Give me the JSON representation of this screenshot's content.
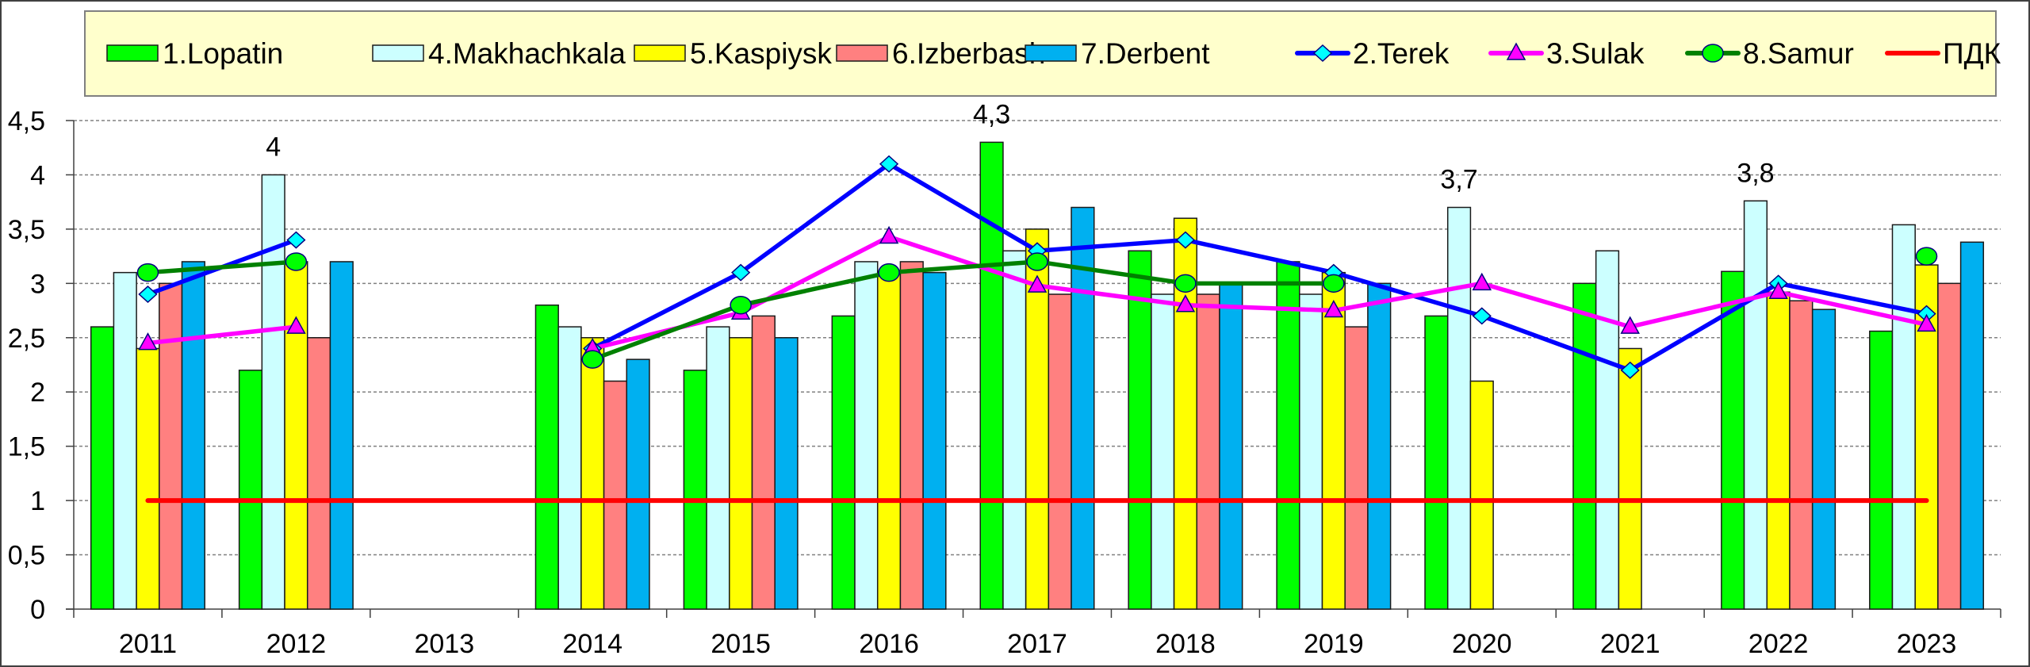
{
  "chart_data": {
    "type": "bar",
    "title": "",
    "xlabel": "",
    "ylabel": "",
    "ylim": [
      0,
      4.5
    ],
    "ytick_step": 0.5,
    "ytick_labels": [
      "0",
      "0,5",
      "1",
      "1,5",
      "2",
      "2,5",
      "3",
      "3,5",
      "4",
      "4,5"
    ],
    "grid": "horizontal-dashed",
    "legend_position": "top",
    "categories": [
      "2011",
      "2012",
      "2013",
      "2014",
      "2015",
      "2016",
      "2017",
      "2018",
      "2019",
      "2020",
      "2021",
      "2022",
      "2023"
    ],
    "bar_series": [
      {
        "name": "1.Lopatin",
        "color": "#00ff00",
        "values": [
          2.6,
          2.2,
          null,
          2.8,
          2.2,
          2.7,
          4.3,
          3.3,
          3.2,
          2.7,
          3.0,
          3.11,
          2.56
        ]
      },
      {
        "name": "4.Makhachkala",
        "color": "#ccffff",
        "values": [
          3.1,
          4.0,
          null,
          2.6,
          2.6,
          3.2,
          3.3,
          2.9,
          2.9,
          3.7,
          3.3,
          3.76,
          3.54
        ]
      },
      {
        "name": "5.Kaspiysk",
        "color": "#ffff00",
        "values": [
          2.4,
          3.2,
          null,
          2.5,
          2.5,
          3.1,
          3.5,
          3.6,
          3.1,
          2.1,
          2.4,
          2.92,
          3.17
        ]
      },
      {
        "name": "6.Izberbash",
        "color": "#ff8080",
        "values": [
          3.0,
          2.5,
          null,
          2.1,
          2.7,
          3.2,
          2.9,
          2.9,
          2.6,
          null,
          null,
          2.84,
          3.0
        ]
      },
      {
        "name": "7.Derbent",
        "color": "#00b0f0",
        "values": [
          3.2,
          3.2,
          null,
          2.3,
          2.5,
          3.1,
          3.7,
          3.0,
          3.0,
          null,
          null,
          2.76,
          3.38
        ]
      }
    ],
    "line_series": [
      {
        "name": "2.Terek",
        "color": "#0000ff",
        "marker": "diamond",
        "marker_color": "#00ffff",
        "values": [
          2.9,
          3.4,
          null,
          2.4,
          3.1,
          4.1,
          3.3,
          3.4,
          3.1,
          2.7,
          2.2,
          3.0,
          2.72
        ]
      },
      {
        "name": "3.Sulak",
        "color": "#ff00ff",
        "marker": "triangle",
        "marker_color": "#ff00ff",
        "values": [
          2.45,
          2.6,
          null,
          2.4,
          2.73,
          3.43,
          2.98,
          2.8,
          2.75,
          3.0,
          2.6,
          2.92,
          2.62
        ]
      },
      {
        "name": "8.Samur",
        "color": "#008000",
        "marker": "circle",
        "marker_color": "#00ff00",
        "values": [
          3.1,
          3.2,
          null,
          2.3,
          2.8,
          3.1,
          3.2,
          3.0,
          3.0,
          null,
          null,
          null,
          3.25
        ]
      },
      {
        "name": "ПДК",
        "color": "#ff0000",
        "marker": "none",
        "values": [
          1,
          1,
          1,
          1,
          1,
          1,
          1,
          1,
          1,
          1,
          1,
          1,
          1
        ]
      }
    ],
    "annotations": [
      {
        "category": "2012",
        "series": "4.Makhachkala",
        "text": "4"
      },
      {
        "category": "2017",
        "series": "1.Lopatin",
        "text": "4,3"
      },
      {
        "category": "2020",
        "series": "4.Makhachkala",
        "text": "3,7"
      },
      {
        "category": "2022",
        "series": "4.Makhachkala",
        "text": "3,8"
      }
    ]
  },
  "legend": {
    "background": "#ffffcc",
    "items": [
      {
        "label": "1.Lopatin",
        "kind": "bar",
        "color": "#00ff00"
      },
      {
        "label": "4.Makhachkala",
        "kind": "bar",
        "color": "#ccffff"
      },
      {
        "label": "5.Kaspiysk",
        "kind": "bar",
        "color": "#ffff00"
      },
      {
        "label": "6.Izberbash",
        "kind": "bar",
        "color": "#ff8080"
      },
      {
        "label": "7.Derbent",
        "kind": "bar",
        "color": "#00b0f0"
      },
      {
        "label": "2.Terek",
        "kind": "line",
        "color": "#0000ff",
        "marker": "diamond",
        "marker_color": "#00ffff"
      },
      {
        "label": "3.Sulak",
        "kind": "line",
        "color": "#ff00ff",
        "marker": "triangle",
        "marker_color": "#ff00ff"
      },
      {
        "label": "8.Samur",
        "kind": "line",
        "color": "#008000",
        "marker": "circle",
        "marker_color": "#00ff00"
      },
      {
        "label": "ПДК",
        "kind": "line",
        "color": "#ff0000",
        "marker": "none"
      }
    ]
  }
}
